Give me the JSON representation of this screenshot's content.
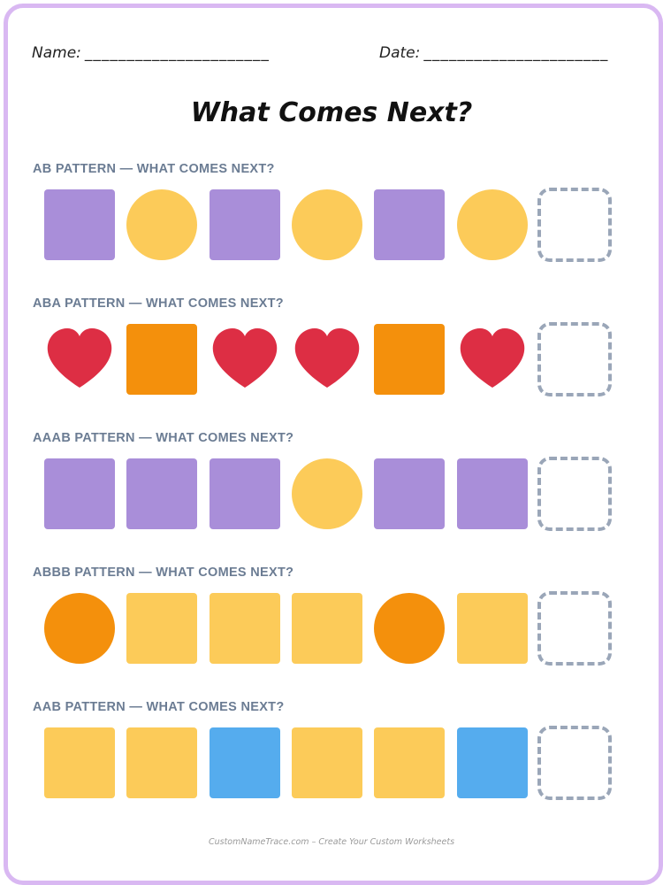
{
  "header": {
    "name_label": "Name:",
    "name_line": "______________________",
    "date_label": "Date:",
    "date_line": "______________________"
  },
  "title": "What Comes Next?",
  "colors": {
    "purple": "#a98ed9",
    "yellow": "#fccb59",
    "red": "#dd2e44",
    "orange": "#f4900c",
    "blue": "#55acee",
    "blank_border": "#9aa6b8",
    "frame": "#d9b8f2",
    "label": "#6b7c93"
  },
  "sections": [
    {
      "label": "AB PATTERN — WHAT COMES NEXT?",
      "items": [
        {
          "shape": "square",
          "color": "purple"
        },
        {
          "shape": "circle",
          "color": "yellow"
        },
        {
          "shape": "square",
          "color": "purple"
        },
        {
          "shape": "circle",
          "color": "yellow"
        },
        {
          "shape": "square",
          "color": "purple"
        },
        {
          "shape": "circle",
          "color": "yellow"
        },
        {
          "shape": "blank"
        }
      ]
    },
    {
      "label": "ABA PATTERN — WHAT COMES NEXT?",
      "items": [
        {
          "shape": "heart",
          "color": "red"
        },
        {
          "shape": "square",
          "color": "orange"
        },
        {
          "shape": "heart",
          "color": "red"
        },
        {
          "shape": "heart",
          "color": "red"
        },
        {
          "shape": "square",
          "color": "orange"
        },
        {
          "shape": "heart",
          "color": "red"
        },
        {
          "shape": "blank"
        }
      ]
    },
    {
      "label": "AAAB PATTERN — WHAT COMES NEXT?",
      "items": [
        {
          "shape": "square",
          "color": "purple"
        },
        {
          "shape": "square",
          "color": "purple"
        },
        {
          "shape": "square",
          "color": "purple"
        },
        {
          "shape": "circle",
          "color": "yellow"
        },
        {
          "shape": "square",
          "color": "purple"
        },
        {
          "shape": "square",
          "color": "purple"
        },
        {
          "shape": "blank"
        }
      ]
    },
    {
      "label": "ABBB PATTERN — WHAT COMES NEXT?",
      "items": [
        {
          "shape": "circle",
          "color": "orange"
        },
        {
          "shape": "square",
          "color": "yellow"
        },
        {
          "shape": "square",
          "color": "yellow"
        },
        {
          "shape": "square",
          "color": "yellow"
        },
        {
          "shape": "circle",
          "color": "orange"
        },
        {
          "shape": "square",
          "color": "yellow"
        },
        {
          "shape": "blank"
        }
      ]
    },
    {
      "label": "AAB PATTERN — WHAT COMES NEXT?",
      "items": [
        {
          "shape": "square",
          "color": "yellow"
        },
        {
          "shape": "square",
          "color": "yellow"
        },
        {
          "shape": "square",
          "color": "blue"
        },
        {
          "shape": "square",
          "color": "yellow"
        },
        {
          "shape": "square",
          "color": "yellow"
        },
        {
          "shape": "square",
          "color": "blue"
        },
        {
          "shape": "blank"
        }
      ]
    }
  ],
  "footer": "CustomNameTrace.com – Create Your Custom Worksheets"
}
